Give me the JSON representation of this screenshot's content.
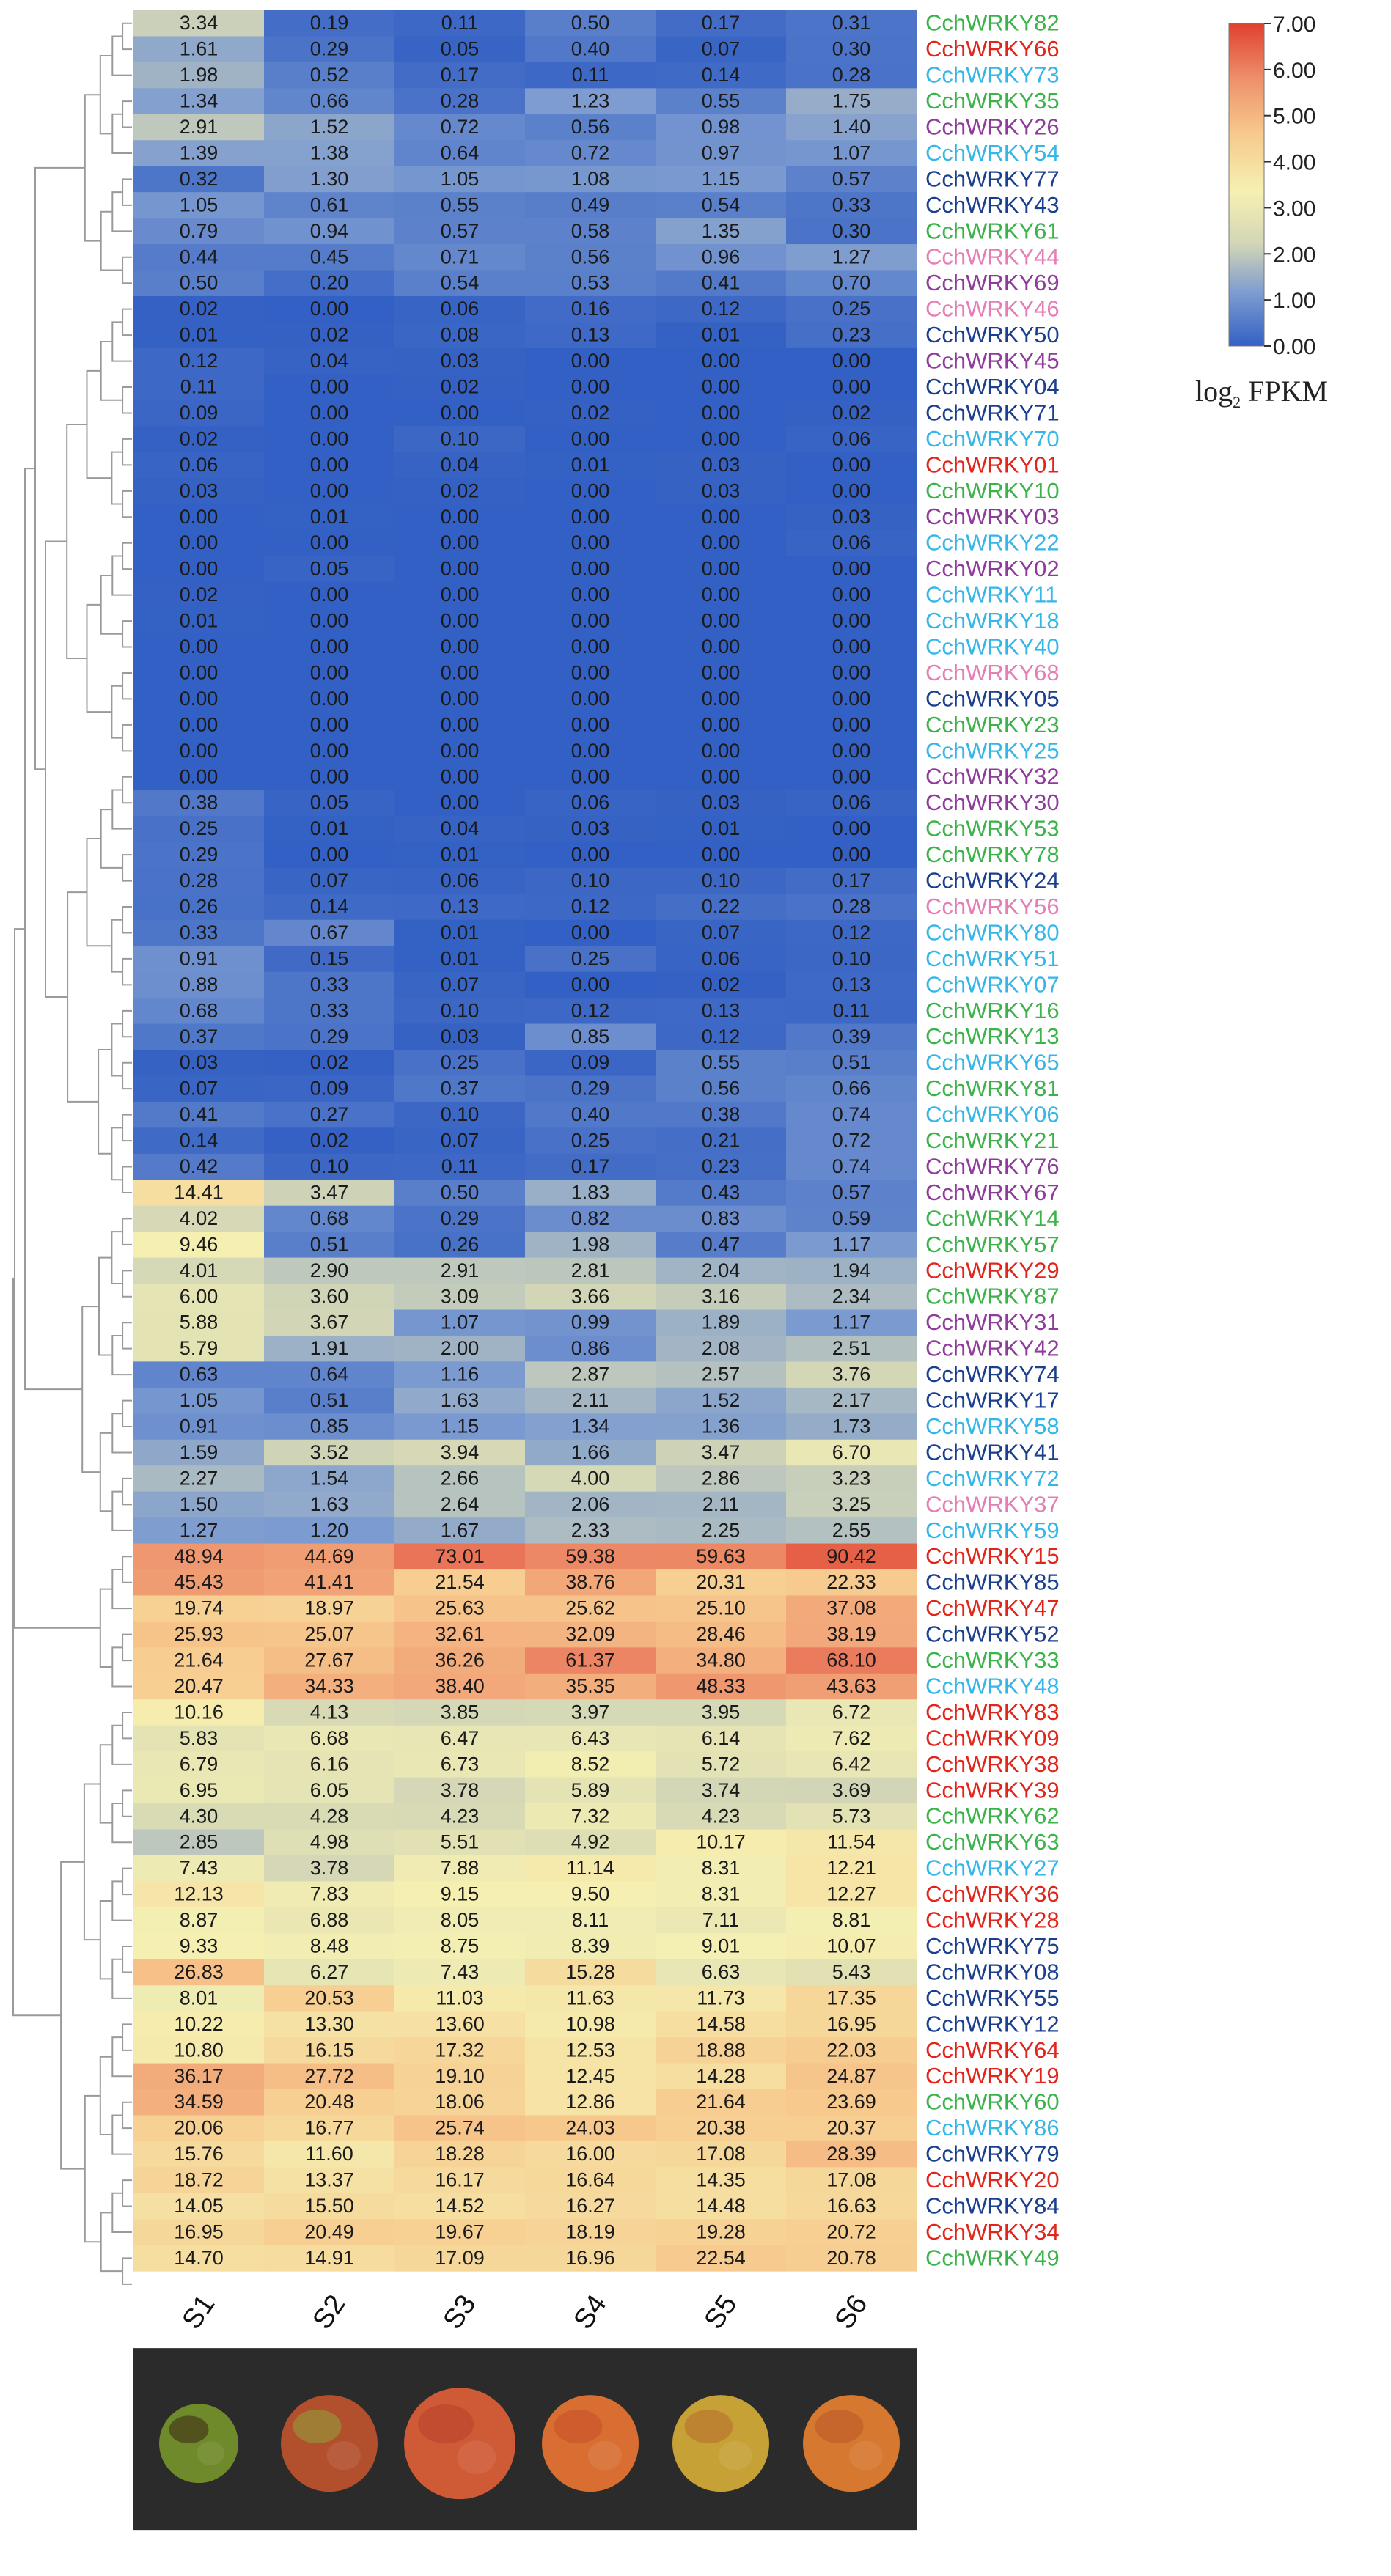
{
  "chart_data": {
    "type": "heatmap",
    "title": "",
    "color_scale": {
      "label": "log2 FPKM",
      "label_main": "log",
      "label_sub": "2",
      "label_rest": " FPKM",
      "ticks": [
        "7.00",
        "6.00",
        "5.00",
        "4.00",
        "3.00",
        "2.00",
        "1.00",
        "0.00"
      ],
      "min": 0,
      "max": 7,
      "colors": [
        "#3360c4",
        "#7b9ad0",
        "#d4d7b6",
        "#f5f0b2",
        "#f7c98d",
        "#ee8f6b",
        "#e0402f"
      ]
    },
    "columns": [
      "S1",
      "S2",
      "S3",
      "S4",
      "S5",
      "S6"
    ],
    "rows": [
      {
        "gene": "CchWRKY82",
        "color": "#3cb34a",
        "values": [
          "3.34",
          "0.19",
          "0.11",
          "0.50",
          "0.17",
          "0.31"
        ]
      },
      {
        "gene": "CchWRKY66",
        "color": "#e0251b",
        "values": [
          "1.61",
          "0.29",
          "0.05",
          "0.40",
          "0.07",
          "0.30"
        ]
      },
      {
        "gene": "CchWRKY73",
        "color": "#35b6e8",
        "values": [
          "1.98",
          "0.52",
          "0.17",
          "0.11",
          "0.14",
          "0.28"
        ]
      },
      {
        "gene": "CchWRKY35",
        "color": "#3cb34a",
        "values": [
          "1.34",
          "0.66",
          "0.28",
          "1.23",
          "0.55",
          "1.75"
        ]
      },
      {
        "gene": "CchWRKY26",
        "color": "#8e3b9b",
        "values": [
          "2.91",
          "1.52",
          "0.72",
          "0.56",
          "0.98",
          "1.40"
        ]
      },
      {
        "gene": "CchWRKY54",
        "color": "#35b6e8",
        "values": [
          "1.39",
          "1.38",
          "0.64",
          "0.72",
          "0.97",
          "1.07"
        ]
      },
      {
        "gene": "CchWRKY77",
        "color": "#1b3f8f",
        "values": [
          "0.32",
          "1.30",
          "1.05",
          "1.08",
          "1.15",
          "0.57"
        ]
      },
      {
        "gene": "CchWRKY43",
        "color": "#1b3f8f",
        "values": [
          "1.05",
          "0.61",
          "0.55",
          "0.49",
          "0.54",
          "0.33"
        ]
      },
      {
        "gene": "CchWRKY61",
        "color": "#3cb34a",
        "values": [
          "0.79",
          "0.94",
          "0.57",
          "0.58",
          "1.35",
          "0.30"
        ]
      },
      {
        "gene": "CchWRKY44",
        "color": "#e57eb5",
        "values": [
          "0.44",
          "0.45",
          "0.71",
          "0.56",
          "0.96",
          "1.27"
        ]
      },
      {
        "gene": "CchWRKY69",
        "color": "#8e3b9b",
        "values": [
          "0.50",
          "0.20",
          "0.54",
          "0.53",
          "0.41",
          "0.70"
        ]
      },
      {
        "gene": "CchWRKY46",
        "color": "#e57eb5",
        "values": [
          "0.02",
          "0.00",
          "0.06",
          "0.16",
          "0.12",
          "0.25"
        ]
      },
      {
        "gene": "CchWRKY50",
        "color": "#1b3f8f",
        "values": [
          "0.01",
          "0.02",
          "0.08",
          "0.13",
          "0.01",
          "0.23"
        ]
      },
      {
        "gene": "CchWRKY45",
        "color": "#8e3b9b",
        "values": [
          "0.12",
          "0.04",
          "0.03",
          "0.00",
          "0.00",
          "0.00"
        ]
      },
      {
        "gene": "CchWRKY04",
        "color": "#1b3f8f",
        "values": [
          "0.11",
          "0.00",
          "0.02",
          "0.00",
          "0.00",
          "0.00"
        ]
      },
      {
        "gene": "CchWRKY71",
        "color": "#1b3f8f",
        "values": [
          "0.09",
          "0.00",
          "0.00",
          "0.02",
          "0.00",
          "0.02"
        ]
      },
      {
        "gene": "CchWRKY70",
        "color": "#35b6e8",
        "values": [
          "0.02",
          "0.00",
          "0.10",
          "0.00",
          "0.00",
          "0.06"
        ]
      },
      {
        "gene": "CchWRKY01",
        "color": "#e0251b",
        "values": [
          "0.06",
          "0.00",
          "0.04",
          "0.01",
          "0.03",
          "0.00"
        ]
      },
      {
        "gene": "CchWRKY10",
        "color": "#3cb34a",
        "values": [
          "0.03",
          "0.00",
          "0.02",
          "0.00",
          "0.03",
          "0.00"
        ]
      },
      {
        "gene": "CchWRKY03",
        "color": "#8e3b9b",
        "values": [
          "0.00",
          "0.01",
          "0.00",
          "0.00",
          "0.00",
          "0.03"
        ]
      },
      {
        "gene": "CchWRKY22",
        "color": "#35b6e8",
        "values": [
          "0.00",
          "0.00",
          "0.00",
          "0.00",
          "0.00",
          "0.06"
        ]
      },
      {
        "gene": "CchWRKY02",
        "color": "#8e3b9b",
        "values": [
          "0.00",
          "0.05",
          "0.00",
          "0.00",
          "0.00",
          "0.00"
        ]
      },
      {
        "gene": "CchWRKY11",
        "color": "#35b6e8",
        "values": [
          "0.02",
          "0.00",
          "0.00",
          "0.00",
          "0.00",
          "0.00"
        ]
      },
      {
        "gene": "CchWRKY18",
        "color": "#35b6e8",
        "values": [
          "0.01",
          "0.00",
          "0.00",
          "0.00",
          "0.00",
          "0.00"
        ]
      },
      {
        "gene": "CchWRKY40",
        "color": "#35b6e8",
        "values": [
          "0.00",
          "0.00",
          "0.00",
          "0.00",
          "0.00",
          "0.00"
        ]
      },
      {
        "gene": "CchWRKY68",
        "color": "#e57eb5",
        "values": [
          "0.00",
          "0.00",
          "0.00",
          "0.00",
          "0.00",
          "0.00"
        ]
      },
      {
        "gene": "CchWRKY05",
        "color": "#1b3f8f",
        "values": [
          "0.00",
          "0.00",
          "0.00",
          "0.00",
          "0.00",
          "0.00"
        ]
      },
      {
        "gene": "CchWRKY23",
        "color": "#3cb34a",
        "values": [
          "0.00",
          "0.00",
          "0.00",
          "0.00",
          "0.00",
          "0.00"
        ]
      },
      {
        "gene": "CchWRKY25",
        "color": "#35b6e8",
        "values": [
          "0.00",
          "0.00",
          "0.00",
          "0.00",
          "0.00",
          "0.00"
        ]
      },
      {
        "gene": "CchWRKY32",
        "color": "#8e3b9b",
        "values": [
          "0.00",
          "0.00",
          "0.00",
          "0.00",
          "0.00",
          "0.00"
        ]
      },
      {
        "gene": "CchWRKY30",
        "color": "#8e3b9b",
        "values": [
          "0.38",
          "0.05",
          "0.00",
          "0.06",
          "0.03",
          "0.06"
        ]
      },
      {
        "gene": "CchWRKY53",
        "color": "#3cb34a",
        "values": [
          "0.25",
          "0.01",
          "0.04",
          "0.03",
          "0.01",
          "0.00"
        ]
      },
      {
        "gene": "CchWRKY78",
        "color": "#3cb34a",
        "values": [
          "0.29",
          "0.00",
          "0.01",
          "0.00",
          "0.00",
          "0.00"
        ]
      },
      {
        "gene": "CchWRKY24",
        "color": "#1b3f8f",
        "values": [
          "0.28",
          "0.07",
          "0.06",
          "0.10",
          "0.10",
          "0.17"
        ]
      },
      {
        "gene": "CchWRKY56",
        "color": "#e57eb5",
        "values": [
          "0.26",
          "0.14",
          "0.13",
          "0.12",
          "0.22",
          "0.28"
        ]
      },
      {
        "gene": "CchWRKY80",
        "color": "#35b6e8",
        "values": [
          "0.33",
          "0.67",
          "0.01",
          "0.00",
          "0.07",
          "0.12"
        ]
      },
      {
        "gene": "CchWRKY51",
        "color": "#35b6e8",
        "values": [
          "0.91",
          "0.15",
          "0.01",
          "0.25",
          "0.06",
          "0.10"
        ]
      },
      {
        "gene": "CchWRKY07",
        "color": "#35b6e8",
        "values": [
          "0.88",
          "0.33",
          "0.07",
          "0.00",
          "0.02",
          "0.13"
        ]
      },
      {
        "gene": "CchWRKY16",
        "color": "#3cb34a",
        "values": [
          "0.68",
          "0.33",
          "0.10",
          "0.12",
          "0.13",
          "0.11"
        ]
      },
      {
        "gene": "CchWRKY13",
        "color": "#3cb34a",
        "values": [
          "0.37",
          "0.29",
          "0.03",
          "0.85",
          "0.12",
          "0.39"
        ]
      },
      {
        "gene": "CchWRKY65",
        "color": "#35b6e8",
        "values": [
          "0.03",
          "0.02",
          "0.25",
          "0.09",
          "0.55",
          "0.51"
        ]
      },
      {
        "gene": "CchWRKY81",
        "color": "#3cb34a",
        "values": [
          "0.07",
          "0.09",
          "0.37",
          "0.29",
          "0.56",
          "0.66"
        ]
      },
      {
        "gene": "CchWRKY06",
        "color": "#35b6e8",
        "values": [
          "0.41",
          "0.27",
          "0.10",
          "0.40",
          "0.38",
          "0.74"
        ]
      },
      {
        "gene": "CchWRKY21",
        "color": "#3cb34a",
        "values": [
          "0.14",
          "0.02",
          "0.07",
          "0.25",
          "0.21",
          "0.72"
        ]
      },
      {
        "gene": "CchWRKY76",
        "color": "#8e3b9b",
        "values": [
          "0.42",
          "0.10",
          "0.11",
          "0.17",
          "0.23",
          "0.74"
        ]
      },
      {
        "gene": "CchWRKY67",
        "color": "#8e3b9b",
        "values": [
          "14.41",
          "3.47",
          "0.50",
          "1.83",
          "0.43",
          "0.57"
        ]
      },
      {
        "gene": "CchWRKY14",
        "color": "#3cb34a",
        "values": [
          "4.02",
          "0.68",
          "0.29",
          "0.82",
          "0.83",
          "0.59"
        ]
      },
      {
        "gene": "CchWRKY57",
        "color": "#3cb34a",
        "values": [
          "9.46",
          "0.51",
          "0.26",
          "1.98",
          "0.47",
          "1.17"
        ]
      },
      {
        "gene": "CchWRKY29",
        "color": "#e0251b",
        "values": [
          "4.01",
          "2.90",
          "2.91",
          "2.81",
          "2.04",
          "1.94"
        ]
      },
      {
        "gene": "CchWRKY87",
        "color": "#3cb34a",
        "values": [
          "6.00",
          "3.60",
          "3.09",
          "3.66",
          "3.16",
          "2.34"
        ]
      },
      {
        "gene": "CchWRKY31",
        "color": "#8e3b9b",
        "values": [
          "5.88",
          "3.67",
          "1.07",
          "0.99",
          "1.89",
          "1.17"
        ]
      },
      {
        "gene": "CchWRKY42",
        "color": "#8e3b9b",
        "values": [
          "5.79",
          "1.91",
          "2.00",
          "0.86",
          "2.08",
          "2.51"
        ]
      },
      {
        "gene": "CchWRKY74",
        "color": "#1b3f8f",
        "values": [
          "0.63",
          "0.64",
          "1.16",
          "2.87",
          "2.57",
          "3.76"
        ]
      },
      {
        "gene": "CchWRKY17",
        "color": "#1b3f8f",
        "values": [
          "1.05",
          "0.51",
          "1.63",
          "2.11",
          "1.52",
          "2.17"
        ]
      },
      {
        "gene": "CchWRKY58",
        "color": "#35b6e8",
        "values": [
          "0.91",
          "0.85",
          "1.15",
          "1.34",
          "1.36",
          "1.73"
        ]
      },
      {
        "gene": "CchWRKY41",
        "color": "#1b3f8f",
        "values": [
          "1.59",
          "3.52",
          "3.94",
          "1.66",
          "3.47",
          "6.70"
        ]
      },
      {
        "gene": "CchWRKY72",
        "color": "#35b6e8",
        "values": [
          "2.27",
          "1.54",
          "2.66",
          "4.00",
          "2.86",
          "3.23"
        ]
      },
      {
        "gene": "CchWRKY37",
        "color": "#e57eb5",
        "values": [
          "1.50",
          "1.63",
          "2.64",
          "2.06",
          "2.11",
          "3.25"
        ]
      },
      {
        "gene": "CchWRKY59",
        "color": "#35b6e8",
        "values": [
          "1.27",
          "1.20",
          "1.67",
          "2.33",
          "2.25",
          "2.55"
        ]
      },
      {
        "gene": "CchWRKY15",
        "color": "#e0251b",
        "values": [
          "48.94",
          "44.69",
          "73.01",
          "59.38",
          "59.63",
          "90.42"
        ]
      },
      {
        "gene": "CchWRKY85",
        "color": "#1b3f8f",
        "values": [
          "45.43",
          "41.41",
          "21.54",
          "38.76",
          "20.31",
          "22.33"
        ]
      },
      {
        "gene": "CchWRKY47",
        "color": "#e0251b",
        "values": [
          "19.74",
          "18.97",
          "25.63",
          "25.62",
          "25.10",
          "37.08"
        ]
      },
      {
        "gene": "CchWRKY52",
        "color": "#1b3f8f",
        "values": [
          "25.93",
          "25.07",
          "32.61",
          "32.09",
          "28.46",
          "38.19"
        ]
      },
      {
        "gene": "CchWRKY33",
        "color": "#3cb34a",
        "values": [
          "21.64",
          "27.67",
          "36.26",
          "61.37",
          "34.80",
          "68.10"
        ]
      },
      {
        "gene": "CchWRKY48",
        "color": "#35b6e8",
        "values": [
          "20.47",
          "34.33",
          "38.40",
          "35.35",
          "48.33",
          "43.63"
        ]
      },
      {
        "gene": "CchWRKY83",
        "color": "#e0251b",
        "values": [
          "10.16",
          "4.13",
          "3.85",
          "3.97",
          "3.95",
          "6.72"
        ]
      },
      {
        "gene": "CchWRKY09",
        "color": "#e0251b",
        "values": [
          "5.83",
          "6.68",
          "6.47",
          "6.43",
          "6.14",
          "7.62"
        ]
      },
      {
        "gene": "CchWRKY38",
        "color": "#e0251b",
        "values": [
          "6.79",
          "6.16",
          "6.73",
          "8.52",
          "5.72",
          "6.42"
        ]
      },
      {
        "gene": "CchWRKY39",
        "color": "#e0251b",
        "values": [
          "6.95",
          "6.05",
          "3.78",
          "5.89",
          "3.74",
          "3.69"
        ]
      },
      {
        "gene": "CchWRKY62",
        "color": "#3cb34a",
        "values": [
          "4.30",
          "4.28",
          "4.23",
          "7.32",
          "4.23",
          "5.73"
        ]
      },
      {
        "gene": "CchWRKY63",
        "color": "#3cb34a",
        "values": [
          "2.85",
          "4.98",
          "5.51",
          "4.92",
          "10.17",
          "11.54"
        ]
      },
      {
        "gene": "CchWRKY27",
        "color": "#35b6e8",
        "values": [
          "7.43",
          "3.78",
          "7.88",
          "11.14",
          "8.31",
          "12.21"
        ]
      },
      {
        "gene": "CchWRKY36",
        "color": "#e0251b",
        "values": [
          "12.13",
          "7.83",
          "9.15",
          "9.50",
          "8.31",
          "12.27"
        ]
      },
      {
        "gene": "CchWRKY28",
        "color": "#e0251b",
        "values": [
          "8.87",
          "6.88",
          "8.05",
          "8.11",
          "7.11",
          "8.81"
        ]
      },
      {
        "gene": "CchWRKY75",
        "color": "#1b3f8f",
        "values": [
          "9.33",
          "8.48",
          "8.75",
          "8.39",
          "9.01",
          "10.07"
        ]
      },
      {
        "gene": "CchWRKY08",
        "color": "#1b3f8f",
        "values": [
          "26.83",
          "6.27",
          "7.43",
          "15.28",
          "6.63",
          "5.43"
        ]
      },
      {
        "gene": "CchWRKY55",
        "color": "#1b3f8f",
        "values": [
          "8.01",
          "20.53",
          "11.03",
          "11.63",
          "11.73",
          "17.35"
        ]
      },
      {
        "gene": "CchWRKY12",
        "color": "#1b3f8f",
        "values": [
          "10.22",
          "13.30",
          "13.60",
          "10.98",
          "14.58",
          "16.95"
        ]
      },
      {
        "gene": "CchWRKY64",
        "color": "#e0251b",
        "values": [
          "10.80",
          "16.15",
          "17.32",
          "12.53",
          "18.88",
          "22.03"
        ]
      },
      {
        "gene": "CchWRKY19",
        "color": "#e0251b",
        "values": [
          "36.17",
          "27.72",
          "19.10",
          "12.45",
          "14.28",
          "24.87"
        ]
      },
      {
        "gene": "CchWRKY60",
        "color": "#3cb34a",
        "values": [
          "34.59",
          "20.48",
          "18.06",
          "12.86",
          "21.64",
          "23.69"
        ]
      },
      {
        "gene": "CchWRKY86",
        "color": "#35b6e8",
        "values": [
          "20.06",
          "16.77",
          "25.74",
          "24.03",
          "20.38",
          "20.37"
        ]
      },
      {
        "gene": "CchWRKY79",
        "color": "#1b3f8f",
        "values": [
          "15.76",
          "11.60",
          "18.28",
          "16.00",
          "17.08",
          "28.39"
        ]
      },
      {
        "gene": "CchWRKY20",
        "color": "#e0251b",
        "values": [
          "18.72",
          "13.37",
          "16.17",
          "16.64",
          "14.35",
          "17.08"
        ]
      },
      {
        "gene": "CchWRKY84",
        "color": "#1b3f8f",
        "values": [
          "14.05",
          "15.50",
          "14.52",
          "16.27",
          "14.48",
          "16.63"
        ]
      },
      {
        "gene": "CchWRKY34",
        "color": "#e0251b",
        "values": [
          "16.95",
          "20.49",
          "19.67",
          "18.19",
          "19.28",
          "20.72"
        ]
      },
      {
        "gene": "CchWRKY49",
        "color": "#3cb34a",
        "values": [
          "14.70",
          "14.91",
          "17.09",
          "16.96",
          "22.54",
          "20.78"
        ]
      }
    ]
  }
}
